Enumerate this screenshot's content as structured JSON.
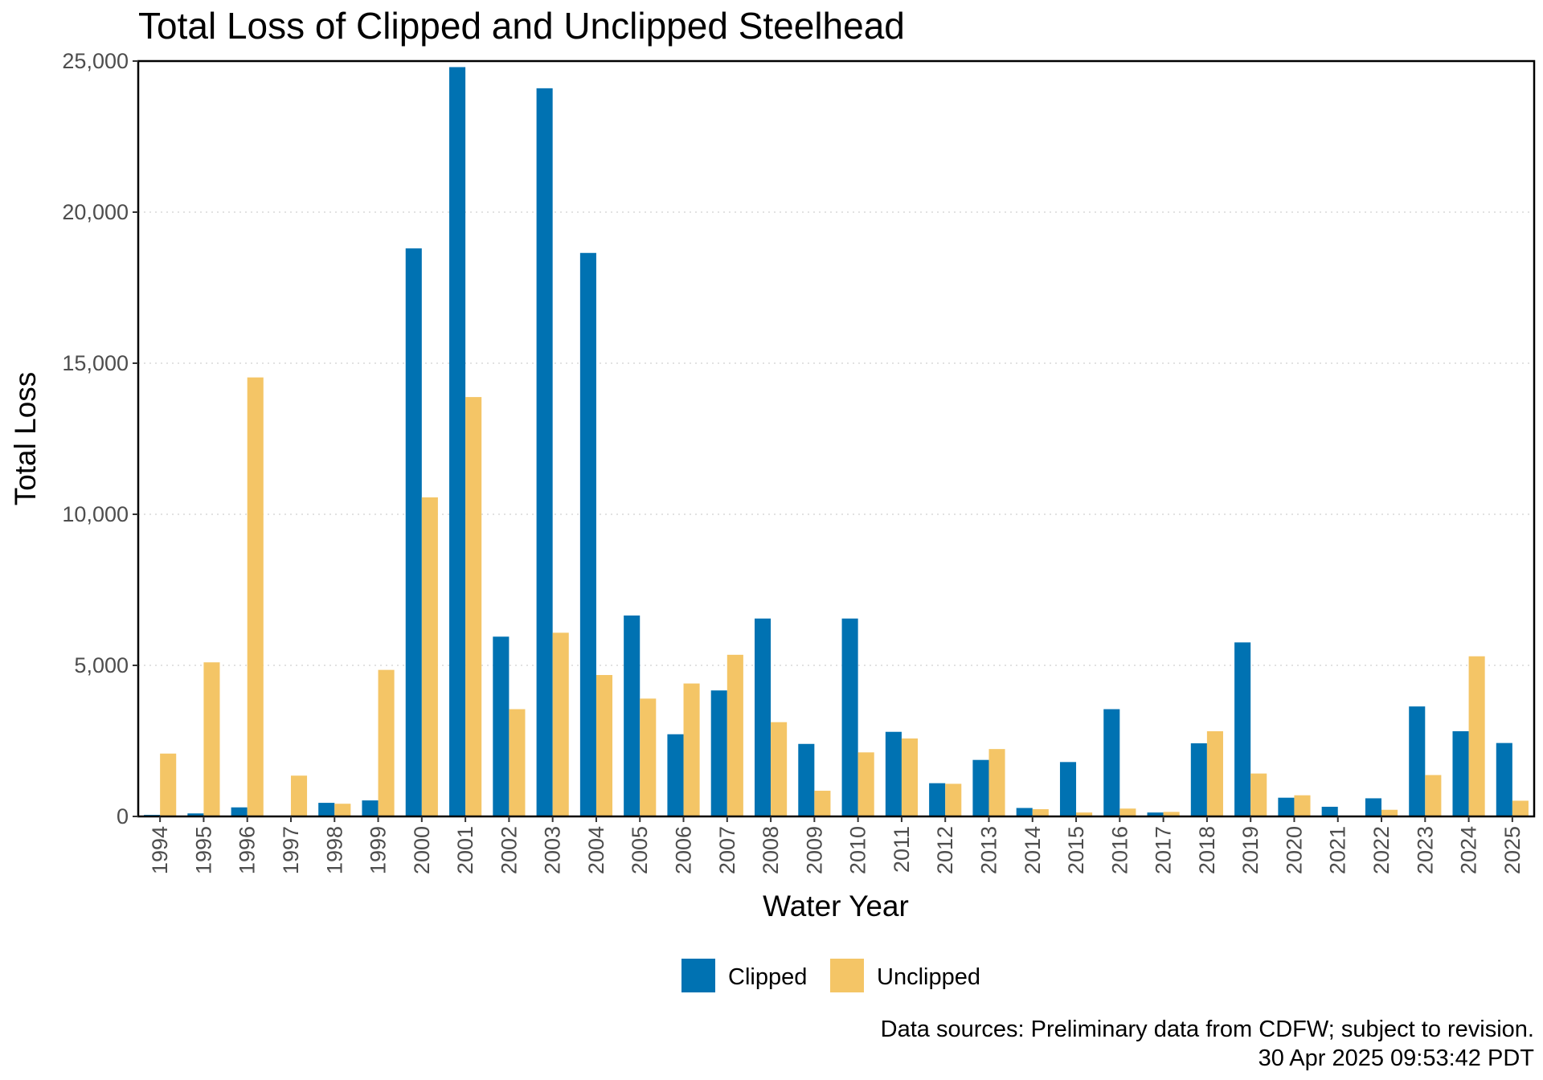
{
  "chart_data": {
    "type": "bar",
    "title": "Total Loss of Clipped and Unclipped Steelhead",
    "xlabel": "Water Year",
    "ylabel": "Total Loss",
    "ylim": [
      0,
      25000
    ],
    "yticks": [
      0,
      5000,
      10000,
      15000,
      20000,
      25000
    ],
    "ytick_labels": [
      "0",
      "5,000",
      "10,000",
      "15,000",
      "20,000",
      "25,000"
    ],
    "grid": "horizontal dotted",
    "legend_position": "bottom",
    "categories": [
      "1994",
      "1995",
      "1996",
      "1997",
      "1998",
      "1999",
      "2000",
      "2001",
      "2002",
      "2003",
      "2004",
      "2005",
      "2006",
      "2007",
      "2008",
      "2009",
      "2010",
      "2011",
      "2012",
      "2013",
      "2014",
      "2015",
      "2016",
      "2017",
      "2018",
      "2019",
      "2020",
      "2021",
      "2022",
      "2023",
      "2024",
      "2025"
    ],
    "series": [
      {
        "name": "Clipped",
        "color": "#0072b2",
        "values": [
          50,
          100,
          300,
          0,
          450,
          530,
          18800,
          24800,
          5950,
          24100,
          18650,
          6650,
          2720,
          4170,
          6550,
          2400,
          6550,
          2800,
          1100,
          1870,
          280,
          1800,
          3550,
          130,
          2420,
          5760,
          620,
          320,
          600,
          3640,
          2820,
          2430
        ]
      },
      {
        "name": "Unclipped",
        "color": "#f4c566",
        "values": [
          2080,
          5100,
          14530,
          1350,
          420,
          4850,
          10560,
          13880,
          3550,
          6080,
          4680,
          3900,
          4400,
          5350,
          3120,
          850,
          2120,
          2580,
          1080,
          2230,
          240,
          130,
          260,
          150,
          2820,
          1420,
          700,
          0,
          220,
          1370,
          5300,
          520
        ]
      }
    ]
  },
  "caption": {
    "line1": "Data sources: Preliminary data from CDFW; subject to revision.",
    "line2": "30 Apr 2025 09:53:42 PDT"
  }
}
